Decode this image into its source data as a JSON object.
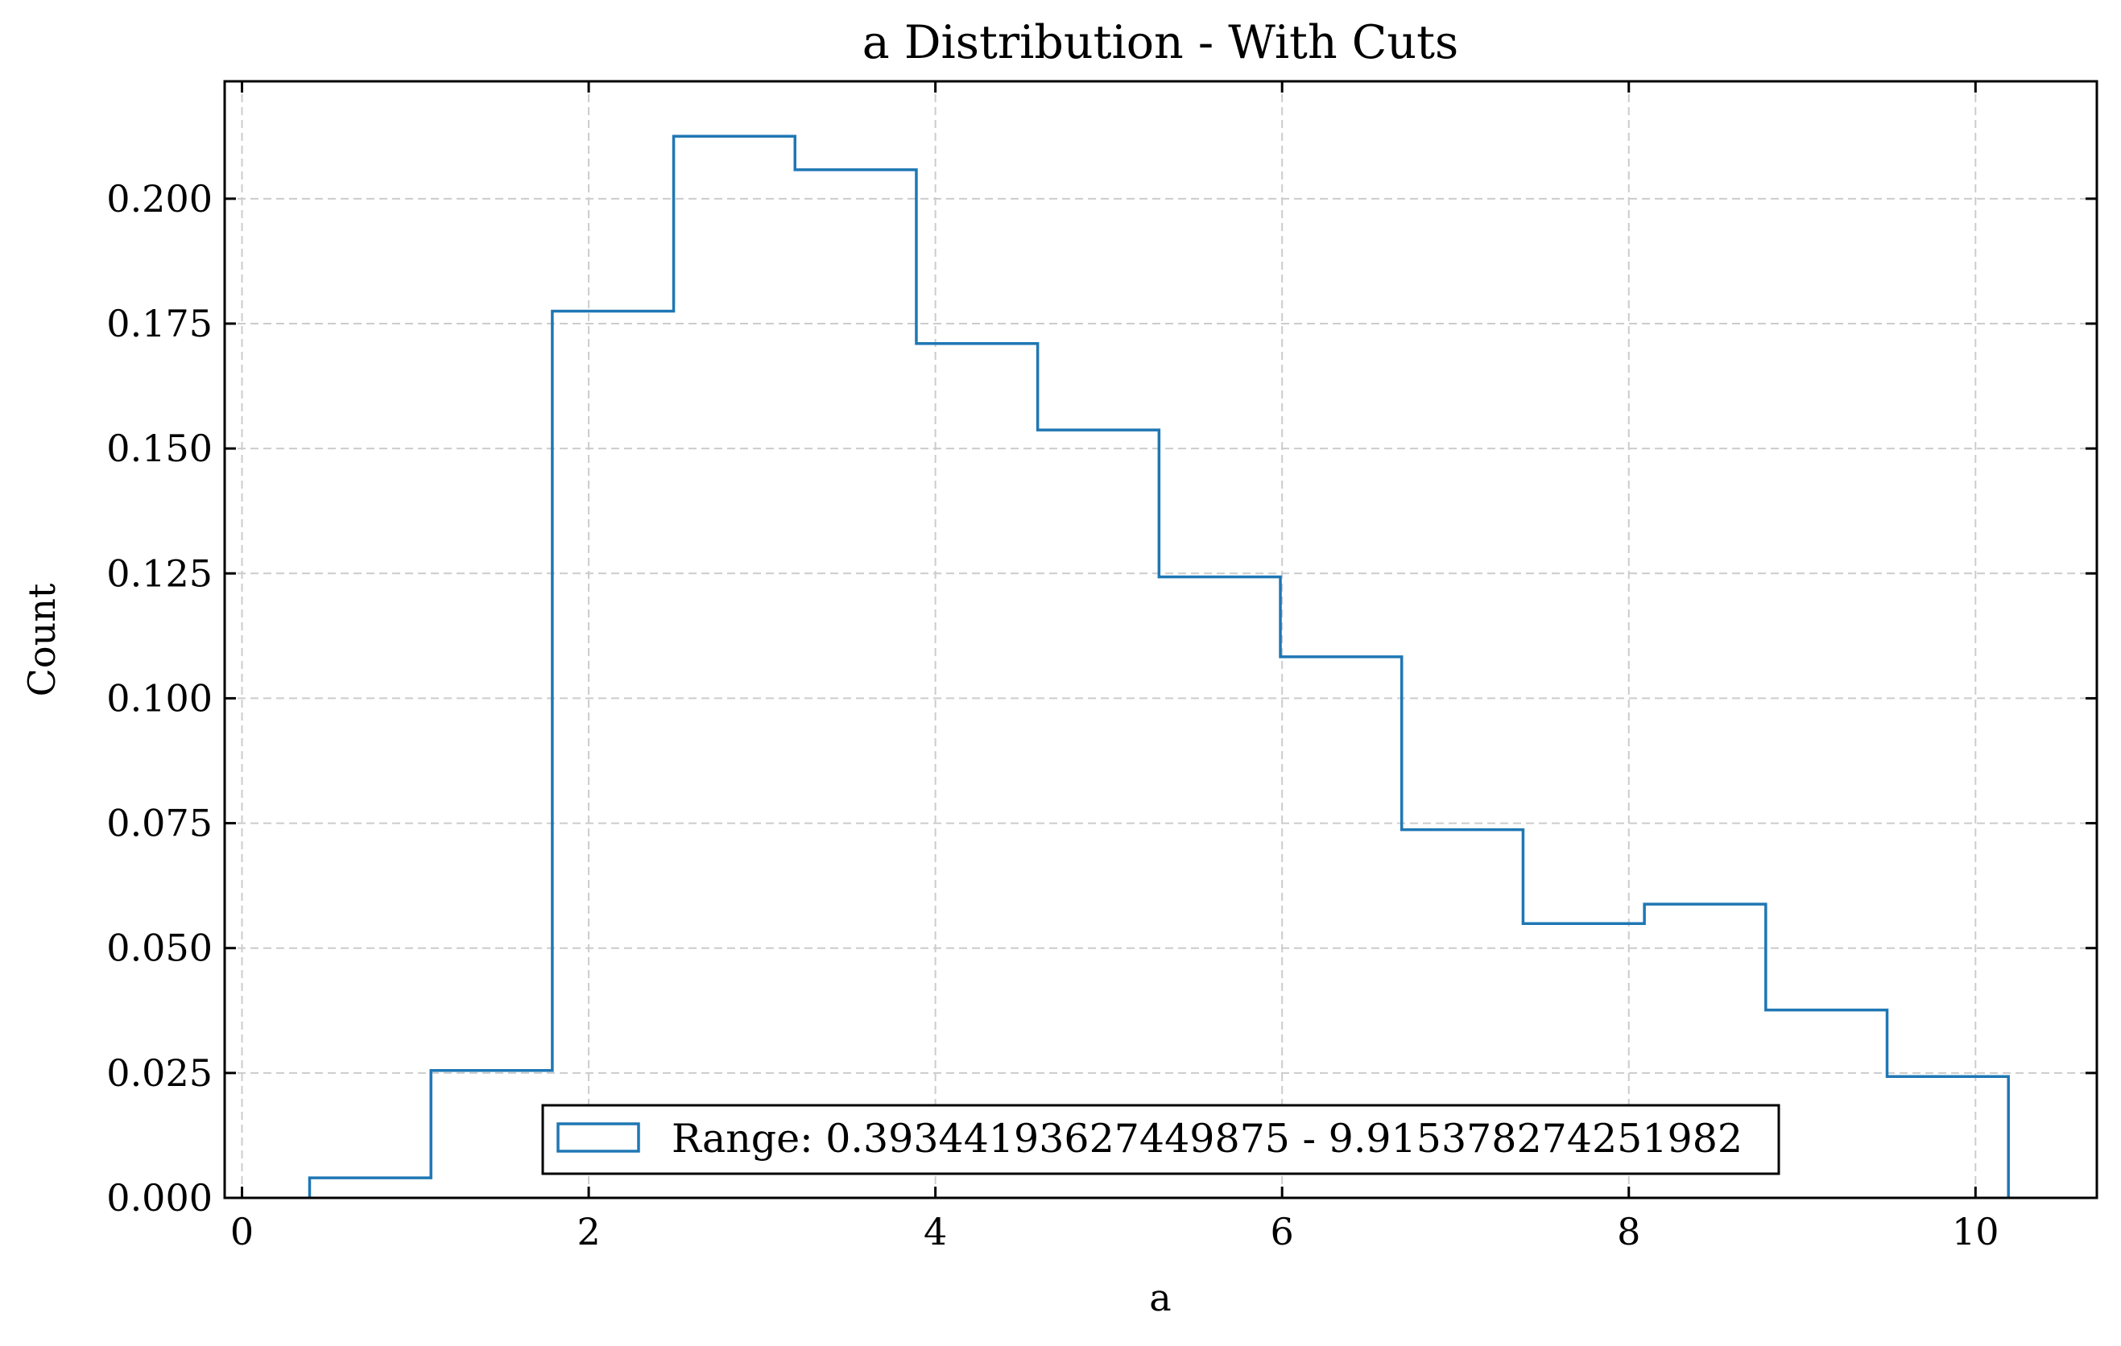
{
  "chart_data": {
    "type": "histogram",
    "title": "a Distribution - With Cuts",
    "xlabel": "a",
    "ylabel": "Count",
    "xlim": [
      -0.1,
      10.7
    ],
    "ylim": [
      0,
      0.2235
    ],
    "xticks": [
      0,
      2,
      4,
      6,
      8,
      10
    ],
    "xtick_labels": [
      "0",
      "2",
      "4",
      "6",
      "8",
      "10"
    ],
    "yticks": [
      0,
      0.025,
      0.05,
      0.075,
      0.1,
      0.125,
      0.15,
      0.175,
      0.2
    ],
    "ytick_labels": [
      "0.000",
      "0.025",
      "0.050",
      "0.075",
      "0.100",
      "0.125",
      "0.150",
      "0.175",
      "0.200"
    ],
    "grid": true,
    "legend_position": "lower center",
    "series": [
      {
        "name": "Range: 0.39344193627449875 - 9.915378274251982",
        "color": "#1f77b4",
        "bin_edges": [
          0.39,
          1.09,
          1.79,
          2.49,
          3.19,
          3.89,
          4.59,
          5.29,
          5.99,
          6.69,
          7.39,
          8.09,
          8.79,
          9.49,
          10.19
        ],
        "values": [
          0.004,
          0.0255,
          0.1775,
          0.2125,
          0.2058,
          0.171,
          0.1537,
          0.1243,
          0.1083,
          0.0737,
          0.0549,
          0.0588,
          0.0376,
          0.0243
        ]
      }
    ]
  }
}
